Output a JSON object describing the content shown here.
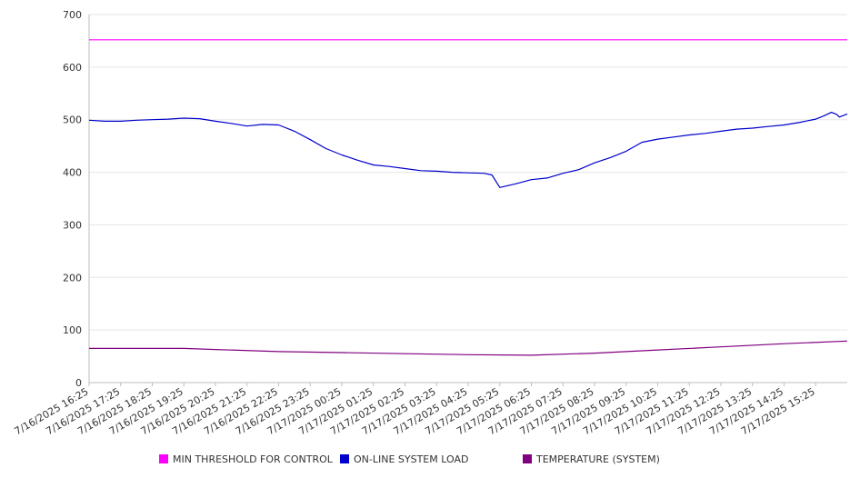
{
  "chart_data": {
    "type": "line",
    "title": "",
    "xlabel": "",
    "ylabel": "",
    "ylim": [
      0,
      700
    ],
    "yticks": [
      0,
      100,
      200,
      300,
      400,
      500,
      600,
      700
    ],
    "grid": true,
    "legend_position": "bottom",
    "x_start": "7/16/2025 16:25",
    "x_end": "7/17/2025 16:25",
    "categories": [
      "7/16/2025 16:25",
      "7/16/2025 17:25",
      "7/16/2025 18:25",
      "7/16/2025 19:25",
      "7/16/2025 20:25",
      "7/16/2025 21:25",
      "7/16/2025 22:25",
      "7/16/2025 23:25",
      "7/17/2025 00:25",
      "7/17/2025 01:25",
      "7/17/2025 02:25",
      "7/17/2025 03:25",
      "7/17/2025 04:25",
      "7/17/2025 05:25",
      "7/17/2025 06:25",
      "7/17/2025 07:25",
      "7/17/2025 08:25",
      "7/17/2025 09:25",
      "7/17/2025 10:25",
      "7/17/2025 11:25",
      "7/17/2025 12:25",
      "7/17/2025 13:25",
      "7/17/2025 14:25",
      "7/17/2025 15:25"
    ],
    "series": [
      {
        "name": "MIN THRESHOLD FOR CONTROL",
        "color": "#ff00ff",
        "points": [
          [
            "7/16/2025 16:25",
            652
          ],
          [
            "7/17/2025 16:25",
            652
          ]
        ]
      },
      {
        "name": "ON-LINE SYSTEM LOAD",
        "color": "#0000cc",
        "points": [
          [
            "7/16/2025 16:25",
            499
          ],
          [
            "7/16/2025 16:55",
            497
          ],
          [
            "7/16/2025 17:25",
            497
          ],
          [
            "7/16/2025 17:55",
            499
          ],
          [
            "7/16/2025 18:25",
            500
          ],
          [
            "7/16/2025 18:55",
            501
          ],
          [
            "7/16/2025 19:25",
            503
          ],
          [
            "7/16/2025 19:55",
            502
          ],
          [
            "7/16/2025 20:25",
            497
          ],
          [
            "7/16/2025 20:55",
            493
          ],
          [
            "7/16/2025 21:25",
            488
          ],
          [
            "7/16/2025 21:55",
            491
          ],
          [
            "7/16/2025 22:25",
            490
          ],
          [
            "7/16/2025 22:55",
            478
          ],
          [
            "7/16/2025 23:25",
            462
          ],
          [
            "7/16/2025 23:55",
            445
          ],
          [
            "7/17/2025 00:25",
            433
          ],
          [
            "7/17/2025 00:55",
            423
          ],
          [
            "7/17/2025 01:25",
            414
          ],
          [
            "7/17/2025 01:55",
            411
          ],
          [
            "7/17/2025 02:25",
            407
          ],
          [
            "7/17/2025 02:55",
            403
          ],
          [
            "7/17/2025 03:25",
            402
          ],
          [
            "7/17/2025 03:55",
            400
          ],
          [
            "7/17/2025 04:25",
            399
          ],
          [
            "7/17/2025 04:55",
            398
          ],
          [
            "7/17/2025 05:10",
            395
          ],
          [
            "7/17/2025 05:25",
            371
          ],
          [
            "7/17/2025 05:55",
            378
          ],
          [
            "7/17/2025 06:25",
            386
          ],
          [
            "7/17/2025 06:55",
            389
          ],
          [
            "7/17/2025 07:25",
            398
          ],
          [
            "7/17/2025 07:55",
            405
          ],
          [
            "7/17/2025 08:25",
            418
          ],
          [
            "7/17/2025 08:55",
            428
          ],
          [
            "7/17/2025 09:25",
            440
          ],
          [
            "7/17/2025 09:55",
            457
          ],
          [
            "7/17/2025 10:25",
            463
          ],
          [
            "7/17/2025 10:55",
            467
          ],
          [
            "7/17/2025 11:25",
            471
          ],
          [
            "7/17/2025 11:55",
            474
          ],
          [
            "7/17/2025 12:25",
            478
          ],
          [
            "7/17/2025 12:55",
            482
          ],
          [
            "7/17/2025 13:25",
            484
          ],
          [
            "7/17/2025 13:55",
            487
          ],
          [
            "7/17/2025 14:25",
            490
          ],
          [
            "7/17/2025 14:55",
            495
          ],
          [
            "7/17/2025 15:25",
            501
          ],
          [
            "7/17/2025 15:40",
            507
          ],
          [
            "7/17/2025 15:55",
            514
          ],
          [
            "7/17/2025 16:05",
            510
          ],
          [
            "7/17/2025 16:10",
            505
          ],
          [
            "7/17/2025 16:25",
            511
          ]
        ]
      },
      {
        "name": "TEMPERATURE (SYSTEM)",
        "color": "#800080",
        "points": [
          [
            "7/16/2025 16:25",
            65
          ],
          [
            "7/16/2025 19:25",
            65
          ],
          [
            "7/16/2025 20:25",
            63
          ],
          [
            "7/16/2025 22:25",
            59
          ],
          [
            "7/17/2025 00:25",
            57
          ],
          [
            "7/17/2025 02:25",
            55
          ],
          [
            "7/17/2025 04:25",
            53
          ],
          [
            "7/17/2025 06:25",
            52
          ],
          [
            "7/17/2025 08:25",
            56
          ],
          [
            "7/17/2025 10:25",
            62
          ],
          [
            "7/17/2025 12:25",
            68
          ],
          [
            "7/17/2025 14:25",
            74
          ],
          [
            "7/17/2025 16:25",
            79
          ]
        ]
      }
    ]
  }
}
